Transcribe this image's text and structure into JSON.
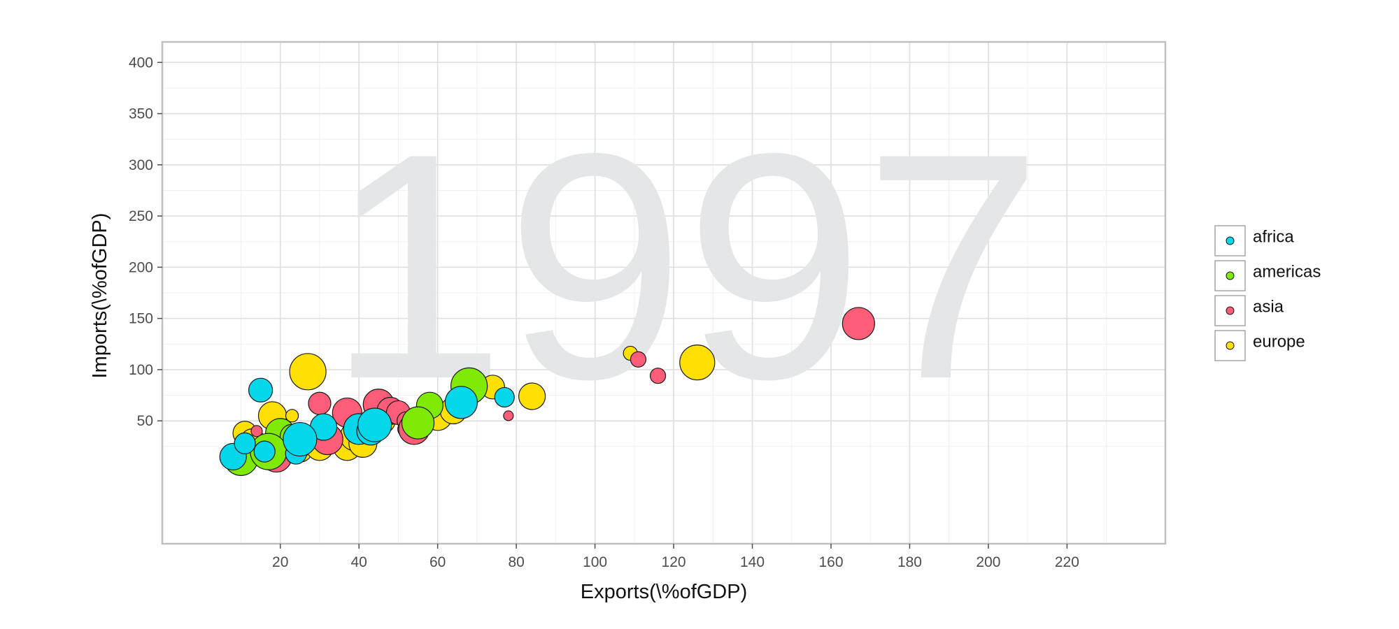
{
  "chart_data": {
    "type": "scatter",
    "background_label": "1997",
    "xlabel": "Exports(\\%ofGDP)",
    "ylabel": "Imports(\\%ofGDP)",
    "xlim": [
      -10,
      245
    ],
    "ylim": [
      -70,
      420
    ],
    "x_ticks": [
      20,
      40,
      60,
      80,
      100,
      120,
      140,
      160,
      180,
      200,
      220
    ],
    "y_ticks": [
      50,
      100,
      150,
      200,
      250,
      300,
      350,
      400
    ],
    "grid": true,
    "legend_position": "right",
    "colors": {
      "africa": "#05d7ea",
      "americas": "#7eea05",
      "asia": "#fe5d77",
      "europe": "#ffe002"
    },
    "series": [
      {
        "name": "europe",
        "points": [
          {
            "x": 27,
            "y": 98,
            "size": 52
          },
          {
            "x": 18,
            "y": 55,
            "size": 40
          },
          {
            "x": 11,
            "y": 38,
            "size": 34
          },
          {
            "x": 13,
            "y": 30,
            "size": 36
          },
          {
            "x": 23,
            "y": 55,
            "size": 18
          },
          {
            "x": 20,
            "y": 24,
            "size": 40
          },
          {
            "x": 25,
            "y": 22,
            "size": 36
          },
          {
            "x": 30,
            "y": 25,
            "size": 40
          },
          {
            "x": 37,
            "y": 25,
            "size": 40
          },
          {
            "x": 39,
            "y": 35,
            "size": 42
          },
          {
            "x": 41,
            "y": 28,
            "size": 40
          },
          {
            "x": 44,
            "y": 45,
            "size": 38
          },
          {
            "x": 46,
            "y": 50,
            "size": 36
          },
          {
            "x": 48,
            "y": 58,
            "size": 34
          },
          {
            "x": 60,
            "y": 55,
            "size": 42
          },
          {
            "x": 64,
            "y": 60,
            "size": 38
          },
          {
            "x": 74,
            "y": 83,
            "size": 34
          },
          {
            "x": 84,
            "y": 74,
            "size": 38
          },
          {
            "x": 109,
            "y": 116,
            "size": 20
          },
          {
            "x": 126,
            "y": 107,
            "size": 50
          }
        ]
      },
      {
        "name": "asia",
        "points": [
          {
            "x": 167,
            "y": 145,
            "size": 46
          },
          {
            "x": 111,
            "y": 110,
            "size": 22
          },
          {
            "x": 116,
            "y": 94,
            "size": 22
          },
          {
            "x": 78,
            "y": 55,
            "size": 14
          },
          {
            "x": 30,
            "y": 67,
            "size": 32
          },
          {
            "x": 37,
            "y": 58,
            "size": 42
          },
          {
            "x": 45,
            "y": 66,
            "size": 44
          },
          {
            "x": 48,
            "y": 60,
            "size": 38
          },
          {
            "x": 50,
            "y": 58,
            "size": 34
          },
          {
            "x": 52,
            "y": 50,
            "size": 26
          },
          {
            "x": 52,
            "y": 42,
            "size": 24
          },
          {
            "x": 54,
            "y": 42,
            "size": 44
          },
          {
            "x": 56,
            "y": 42,
            "size": 10
          },
          {
            "x": 14,
            "y": 40,
            "size": 16
          },
          {
            "x": 19,
            "y": 15,
            "size": 44
          },
          {
            "x": 32,
            "y": 32,
            "size": 44
          }
        ]
      },
      {
        "name": "americas",
        "points": [
          {
            "x": 68,
            "y": 84,
            "size": 52
          },
          {
            "x": 58,
            "y": 65,
            "size": 38
          },
          {
            "x": 55,
            "y": 48,
            "size": 46
          },
          {
            "x": 20,
            "y": 38,
            "size": 42
          },
          {
            "x": 23,
            "y": 35,
            "size": 34
          },
          {
            "x": 25,
            "y": 22,
            "size": 26
          },
          {
            "x": 10,
            "y": 13,
            "size": 48
          },
          {
            "x": 17,
            "y": 20,
            "size": 52
          }
        ]
      },
      {
        "name": "africa",
        "points": [
          {
            "x": 15,
            "y": 80,
            "size": 34
          },
          {
            "x": 77,
            "y": 73,
            "size": 28
          },
          {
            "x": 66,
            "y": 68,
            "size": 46
          },
          {
            "x": 8,
            "y": 15,
            "size": 38
          },
          {
            "x": 11,
            "y": 28,
            "size": 30
          },
          {
            "x": 16,
            "y": 20,
            "size": 30
          },
          {
            "x": 24,
            "y": 18,
            "size": 30
          },
          {
            "x": 31,
            "y": 44,
            "size": 38
          },
          {
            "x": 40,
            "y": 42,
            "size": 44
          },
          {
            "x": 43,
            "y": 40,
            "size": 40
          },
          {
            "x": 44,
            "y": 46,
            "size": 48
          },
          {
            "x": 25,
            "y": 32,
            "size": 48
          }
        ]
      }
    ],
    "legend": [
      {
        "name": "africa"
      },
      {
        "name": "americas"
      },
      {
        "name": "asia"
      },
      {
        "name": "europe"
      }
    ]
  }
}
